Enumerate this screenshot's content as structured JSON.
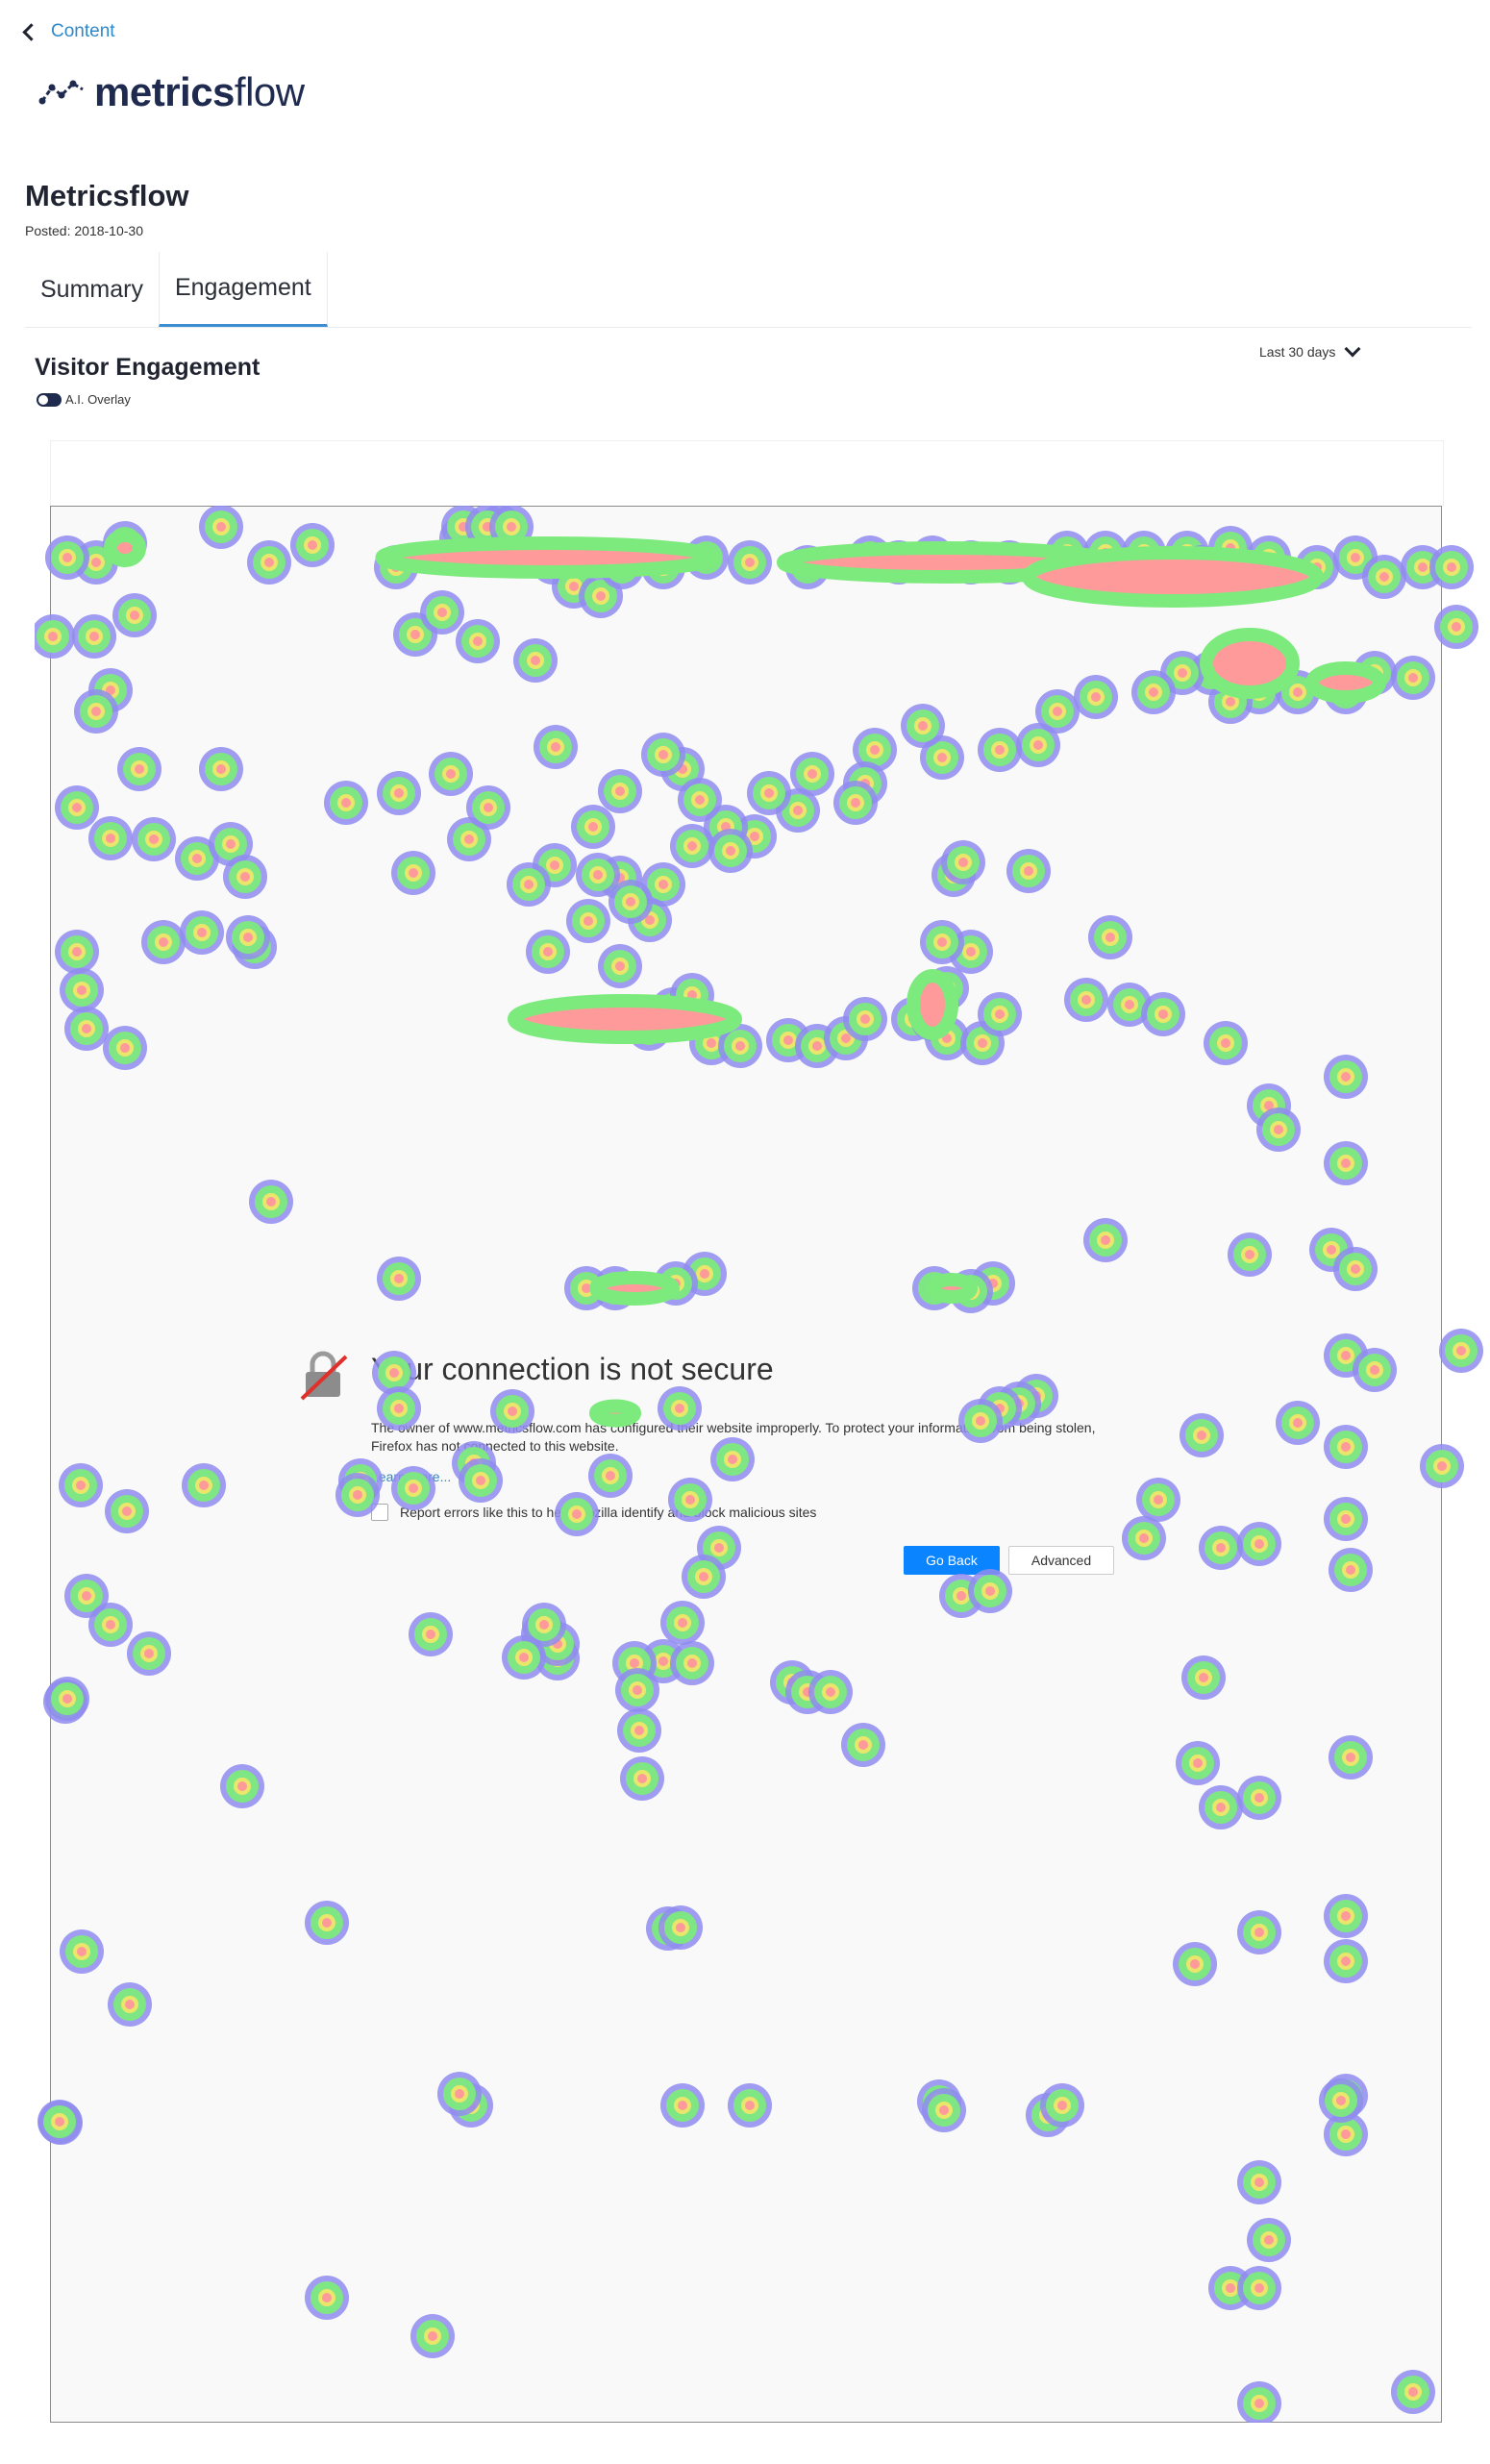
{
  "nav": {
    "back_label": "Content"
  },
  "brand": {
    "name_bold": "metrics",
    "name_light": "flow"
  },
  "report": {
    "title": "Metricsflow",
    "posted": "Posted: 2018-10-30",
    "tabs": [
      {
        "label": "Summary",
        "active": false
      },
      {
        "label": "Engagement",
        "active": true
      }
    ]
  },
  "engagement": {
    "section_title": "Visitor Engagement",
    "overlay_label": "A.I. Overlay",
    "overlay_enabled": true,
    "date_range": "Last 30 days"
  },
  "captured_page": {
    "title": "Your connection is not secure",
    "description": "The owner of www.metricsflow.com has configured their website improperly. To protect your information from being stolen, Firefox has not connected to this website.",
    "learn_more": "Learn more...",
    "report_checkbox_label": "Report errors like this to help Mozilla identify and block malicious sites",
    "go_back_label": "Go Back",
    "advanced_label": "Advanced"
  },
  "colors": {
    "accent": "#3b8ed1",
    "link": "#2f88c8",
    "brand_dark": "#1f2a4f",
    "primary_button": "#0a84ff",
    "heat_hot": "#ff9a9a",
    "heat_mid": "#7dea7d",
    "heat_cold": "#8f8cf0"
  }
}
